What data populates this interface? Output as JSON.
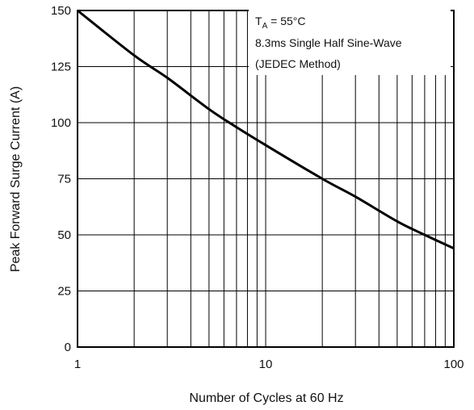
{
  "chart_data": {
    "type": "line",
    "title": "",
    "xlabel": "Number of Cycles at 60 Hz",
    "ylabel": "Peak Forward Surge Current (A)",
    "x_scale": "log",
    "xlim": [
      1,
      100
    ],
    "ylim": [
      0,
      150
    ],
    "x_ticks": [
      "1",
      "10",
      "100"
    ],
    "y_ticks": [
      "0",
      "25",
      "50",
      "75",
      "100",
      "125",
      "150"
    ],
    "grid": true,
    "annotation": {
      "line1_main": "T",
      "line1_sub": "A",
      "line1_rest": " = 55°C",
      "line2": "8.3ms Single Half Sine-Wave",
      "line3": "(JEDEC Method)"
    },
    "series": [
      {
        "x": [
          1,
          2,
          3,
          5,
          7,
          10,
          20,
          30,
          50,
          70,
          100
        ],
        "y": [
          150,
          130,
          120,
          106,
          98,
          90,
          75,
          67,
          56,
          50,
          44
        ],
        "color": "#000000"
      }
    ]
  }
}
